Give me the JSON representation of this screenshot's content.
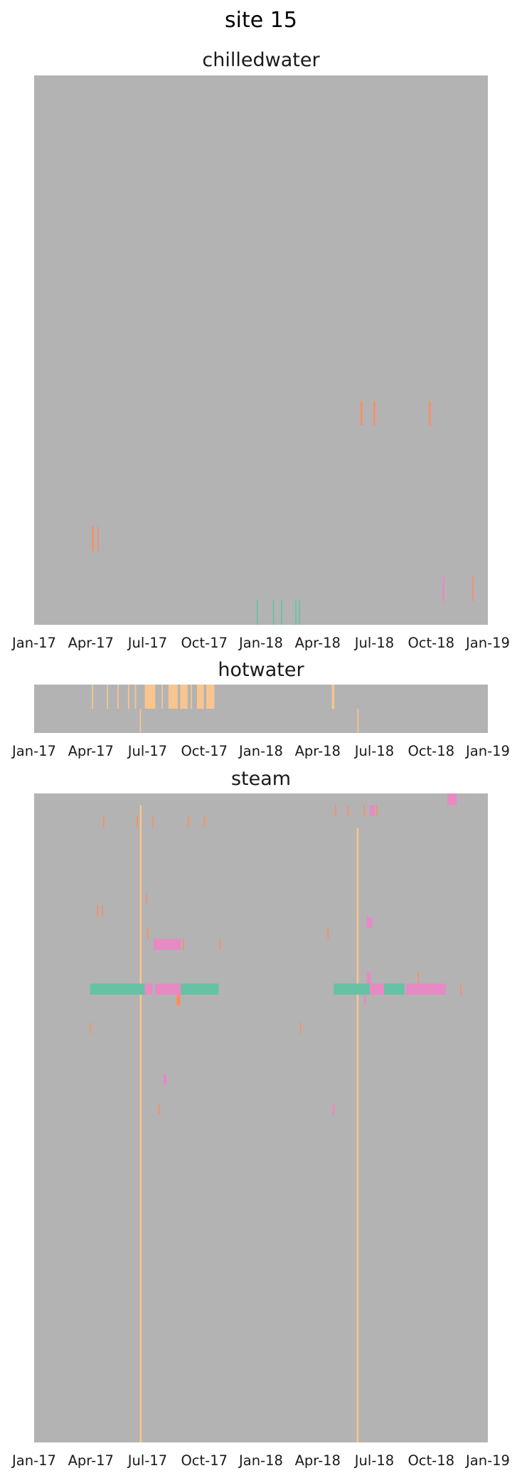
{
  "figure": {
    "title": "site 15"
  },
  "colors": {
    "background": "#b3b3b3",
    "orange": "#fc8d62",
    "green": "#66c2a5",
    "pink": "#e78ac3",
    "peach": "#f8c58e",
    "text": "#1a1a1a"
  },
  "chart_data": [
    {
      "type": "heatmap",
      "title": "chilledwater",
      "x_range": [
        "2017-01-01",
        "2019-01-01"
      ],
      "x_ticks": [
        "Jan-17",
        "Apr-17",
        "Jul-17",
        "Oct-17",
        "Jan-18",
        "Apr-18",
        "Jul-18",
        "Oct-18",
        "Jan-19"
      ],
      "background_color": "#b3b3b3",
      "grid": false,
      "marks": [
        {
          "start": "2018-06-10",
          "end": "2018-06-13",
          "row_start": 0.593,
          "row_end": 0.637,
          "color": "#fc8d62"
        },
        {
          "start": "2018-07-01",
          "end": "2018-07-04",
          "row_start": 0.593,
          "row_end": 0.637,
          "color": "#fc8d62"
        },
        {
          "start": "2018-09-28",
          "end": "2018-10-01",
          "row_start": 0.593,
          "row_end": 0.637,
          "color": "#fc8d62"
        },
        {
          "start": "2017-04-04",
          "end": "2017-04-07",
          "row_start": 0.821,
          "row_end": 0.866,
          "color": "#fc8d62"
        },
        {
          "start": "2017-04-13",
          "end": "2017-04-15",
          "row_start": 0.821,
          "row_end": 0.866,
          "color": "#fc8d62"
        },
        {
          "start": "2018-10-20",
          "end": "2018-10-23",
          "row_start": 0.912,
          "row_end": 0.957,
          "color": "#e78ac3"
        },
        {
          "start": "2018-12-07",
          "end": "2018-12-09",
          "row_start": 0.912,
          "row_end": 0.957,
          "color": "#fc8d62"
        },
        {
          "start": "2017-12-25",
          "end": "2017-12-27",
          "row_start": 0.955,
          "row_end": 1.0,
          "color": "#66c2a5"
        },
        {
          "start": "2018-01-20",
          "end": "2018-01-22",
          "row_start": 0.955,
          "row_end": 1.0,
          "color": "#66c2a5"
        },
        {
          "start": "2018-02-02",
          "end": "2018-02-04",
          "row_start": 0.955,
          "row_end": 1.0,
          "color": "#66c2a5"
        },
        {
          "start": "2018-02-25",
          "end": "2018-02-27",
          "row_start": 0.955,
          "row_end": 1.0,
          "color": "#66c2a5"
        },
        {
          "start": "2018-03-03",
          "end": "2018-03-05",
          "row_start": 0.955,
          "row_end": 1.0,
          "color": "#66c2a5"
        }
      ]
    },
    {
      "type": "heatmap",
      "title": "hotwater",
      "x_range": [
        "2017-01-01",
        "2019-01-01"
      ],
      "x_ticks": [
        "Jan-17",
        "Apr-17",
        "Jul-17",
        "Oct-17",
        "Jan-18",
        "Apr-18",
        "Jul-18",
        "Oct-18",
        "Jan-19"
      ],
      "background_color": "#b3b3b3",
      "grid": false,
      "marks": [
        {
          "start": "2017-04-04",
          "end": "2017-04-06",
          "row_start": 0.0,
          "row_end": 0.5,
          "color": "#f8c58e"
        },
        {
          "start": "2017-04-28",
          "end": "2017-04-30",
          "row_start": 0.0,
          "row_end": 0.5,
          "color": "#f8c58e"
        },
        {
          "start": "2017-05-15",
          "end": "2017-05-17",
          "row_start": 0.0,
          "row_end": 0.5,
          "color": "#f8c58e"
        },
        {
          "start": "2017-06-01",
          "end": "2017-06-03",
          "row_start": 0.0,
          "row_end": 0.5,
          "color": "#f8c58e"
        },
        {
          "start": "2017-06-12",
          "end": "2017-06-14",
          "row_start": 0.0,
          "row_end": 0.5,
          "color": "#f8c58e"
        },
        {
          "start": "2017-06-20",
          "end": "2017-06-22",
          "row_start": 0.5,
          "row_end": 1.0,
          "color": "#f8c58e"
        },
        {
          "start": "2017-06-28",
          "end": "2017-07-15",
          "row_start": 0.0,
          "row_end": 0.5,
          "color": "#f8c58e"
        },
        {
          "start": "2017-07-25",
          "end": "2017-07-27",
          "row_start": 0.0,
          "row_end": 0.5,
          "color": "#f8c58e"
        },
        {
          "start": "2017-08-05",
          "end": "2017-08-20",
          "row_start": 0.0,
          "row_end": 0.5,
          "color": "#f8c58e"
        },
        {
          "start": "2017-08-24",
          "end": "2017-09-05",
          "row_start": 0.0,
          "row_end": 0.5,
          "color": "#f8c58e"
        },
        {
          "start": "2017-09-10",
          "end": "2017-09-12",
          "row_start": 0.0,
          "row_end": 0.5,
          "color": "#f8c58e"
        },
        {
          "start": "2017-09-20",
          "end": "2017-10-01",
          "row_start": 0.0,
          "row_end": 0.5,
          "color": "#f8c58e"
        },
        {
          "start": "2017-10-05",
          "end": "2017-10-18",
          "row_start": 0.0,
          "row_end": 0.5,
          "color": "#f8c58e"
        },
        {
          "start": "2018-04-25",
          "end": "2018-04-29",
          "row_start": 0.0,
          "row_end": 0.5,
          "color": "#f8c58e"
        },
        {
          "start": "2018-06-05",
          "end": "2018-06-07",
          "row_start": 0.5,
          "row_end": 1.0,
          "color": "#f8c58e"
        }
      ]
    },
    {
      "type": "heatmap",
      "title": "steam",
      "x_range": [
        "2017-01-01",
        "2019-01-01"
      ],
      "x_ticks": [
        "Jan-17",
        "Apr-17",
        "Jul-17",
        "Oct-17",
        "Jan-18",
        "Apr-18",
        "Jul-18",
        "Oct-18",
        "Jan-19"
      ],
      "background_color": "#b3b3b3",
      "grid": false,
      "marks": [
        {
          "start": "2017-06-20",
          "end": "2017-06-23",
          "row_start": 0.018,
          "row_end": 1.0,
          "color": "#f8c58e"
        },
        {
          "start": "2018-06-04",
          "end": "2018-06-07",
          "row_start": 0.053,
          "row_end": 1.0,
          "color": "#f8c58e"
        },
        {
          "start": "2018-10-28",
          "end": "2018-11-12",
          "row_start": 0.0,
          "row_end": 0.018,
          "color": "#e78ac3"
        },
        {
          "start": "2018-04-30",
          "end": "2018-05-02",
          "row_start": 0.018,
          "row_end": 0.035,
          "color": "#fc8d62"
        },
        {
          "start": "2018-05-20",
          "end": "2018-05-22",
          "row_start": 0.018,
          "row_end": 0.035,
          "color": "#fc8d62"
        },
        {
          "start": "2018-06-15",
          "end": "2018-06-17",
          "row_start": 0.018,
          "row_end": 0.035,
          "color": "#fc8d62"
        },
        {
          "start": "2018-06-25",
          "end": "2018-07-03",
          "row_start": 0.018,
          "row_end": 0.035,
          "color": "#e78ac3"
        },
        {
          "start": "2018-07-05",
          "end": "2018-07-07",
          "row_start": 0.018,
          "row_end": 0.035,
          "color": "#fc8d62"
        },
        {
          "start": "2017-04-22",
          "end": "2017-04-24",
          "row_start": 0.035,
          "row_end": 0.052,
          "color": "#fc8d62"
        },
        {
          "start": "2017-06-15",
          "end": "2017-06-17",
          "row_start": 0.035,
          "row_end": 0.052,
          "color": "#fc8d62"
        },
        {
          "start": "2017-07-10",
          "end": "2017-07-12",
          "row_start": 0.035,
          "row_end": 0.052,
          "color": "#fc8d62"
        },
        {
          "start": "2017-09-05",
          "end": "2017-09-07",
          "row_start": 0.035,
          "row_end": 0.052,
          "color": "#fc8d62"
        },
        {
          "start": "2017-10-01",
          "end": "2017-10-03",
          "row_start": 0.035,
          "row_end": 0.052,
          "color": "#fc8d62"
        },
        {
          "start": "2017-06-30",
          "end": "2017-07-02",
          "row_start": 0.155,
          "row_end": 0.17,
          "color": "#fc8d62"
        },
        {
          "start": "2017-04-12",
          "end": "2017-04-14",
          "row_start": 0.172,
          "row_end": 0.19,
          "color": "#fc8d62"
        },
        {
          "start": "2017-04-20",
          "end": "2017-04-22",
          "row_start": 0.172,
          "row_end": 0.19,
          "color": "#fc8d62"
        },
        {
          "start": "2018-06-20",
          "end": "2018-06-29",
          "row_start": 0.19,
          "row_end": 0.207,
          "color": "#e78ac3"
        },
        {
          "start": "2017-07-02",
          "end": "2017-07-04",
          "row_start": 0.207,
          "row_end": 0.224,
          "color": "#fc8d62"
        },
        {
          "start": "2018-04-18",
          "end": "2018-04-20",
          "row_start": 0.207,
          "row_end": 0.224,
          "color": "#fc8d62"
        },
        {
          "start": "2017-07-12",
          "end": "2017-08-25",
          "row_start": 0.224,
          "row_end": 0.241,
          "color": "#e78ac3"
        },
        {
          "start": "2017-08-28",
          "end": "2017-08-30",
          "row_start": 0.224,
          "row_end": 0.241,
          "color": "#fc8d62"
        },
        {
          "start": "2017-10-26",
          "end": "2017-10-28",
          "row_start": 0.224,
          "row_end": 0.241,
          "color": "#fc8d62"
        },
        {
          "start": "2018-06-20",
          "end": "2018-06-27",
          "row_start": 0.276,
          "row_end": 0.293,
          "color": "#e78ac3"
        },
        {
          "start": "2018-09-10",
          "end": "2018-09-12",
          "row_start": 0.276,
          "row_end": 0.293,
          "color": "#fc8d62"
        },
        {
          "start": "2017-04-01",
          "end": "2017-06-28",
          "row_start": 0.293,
          "row_end": 0.31,
          "color": "#66c2a5"
        },
        {
          "start": "2017-06-28",
          "end": "2017-07-10",
          "row_start": 0.293,
          "row_end": 0.31,
          "color": "#e78ac3"
        },
        {
          "start": "2017-07-15",
          "end": "2017-08-25",
          "row_start": 0.293,
          "row_end": 0.31,
          "color": "#e78ac3"
        },
        {
          "start": "2017-08-25",
          "end": "2017-10-25",
          "row_start": 0.293,
          "row_end": 0.31,
          "color": "#66c2a5"
        },
        {
          "start": "2018-04-28",
          "end": "2018-06-25",
          "row_start": 0.293,
          "row_end": 0.31,
          "color": "#66c2a5"
        },
        {
          "start": "2018-06-25",
          "end": "2018-07-18",
          "row_start": 0.293,
          "row_end": 0.31,
          "color": "#e78ac3"
        },
        {
          "start": "2018-07-18",
          "end": "2018-08-20",
          "row_start": 0.293,
          "row_end": 0.31,
          "color": "#66c2a5"
        },
        {
          "start": "2018-08-22",
          "end": "2018-10-25",
          "row_start": 0.293,
          "row_end": 0.31,
          "color": "#e78ac3"
        },
        {
          "start": "2018-11-18",
          "end": "2018-11-20",
          "row_start": 0.293,
          "row_end": 0.31,
          "color": "#fc8d62"
        },
        {
          "start": "2017-08-18",
          "end": "2017-08-24",
          "row_start": 0.31,
          "row_end": 0.327,
          "color": "#fc8d62"
        },
        {
          "start": "2018-06-16",
          "end": "2018-06-19",
          "row_start": 0.31,
          "row_end": 0.327,
          "color": "#e78ac3"
        },
        {
          "start": "2017-04-01",
          "end": "2017-04-03",
          "row_start": 0.353,
          "row_end": 0.37,
          "color": "#fc8d62"
        },
        {
          "start": "2018-03-05",
          "end": "2018-03-07",
          "row_start": 0.353,
          "row_end": 0.37,
          "color": "#fc8d62"
        },
        {
          "start": "2017-07-28",
          "end": "2017-08-02",
          "row_start": 0.432,
          "row_end": 0.449,
          "color": "#e78ac3"
        },
        {
          "start": "2017-07-20",
          "end": "2017-07-22",
          "row_start": 0.478,
          "row_end": 0.495,
          "color": "#fc8d62"
        },
        {
          "start": "2018-04-26",
          "end": "2018-04-29",
          "row_start": 0.478,
          "row_end": 0.495,
          "color": "#e78ac3"
        }
      ]
    }
  ]
}
